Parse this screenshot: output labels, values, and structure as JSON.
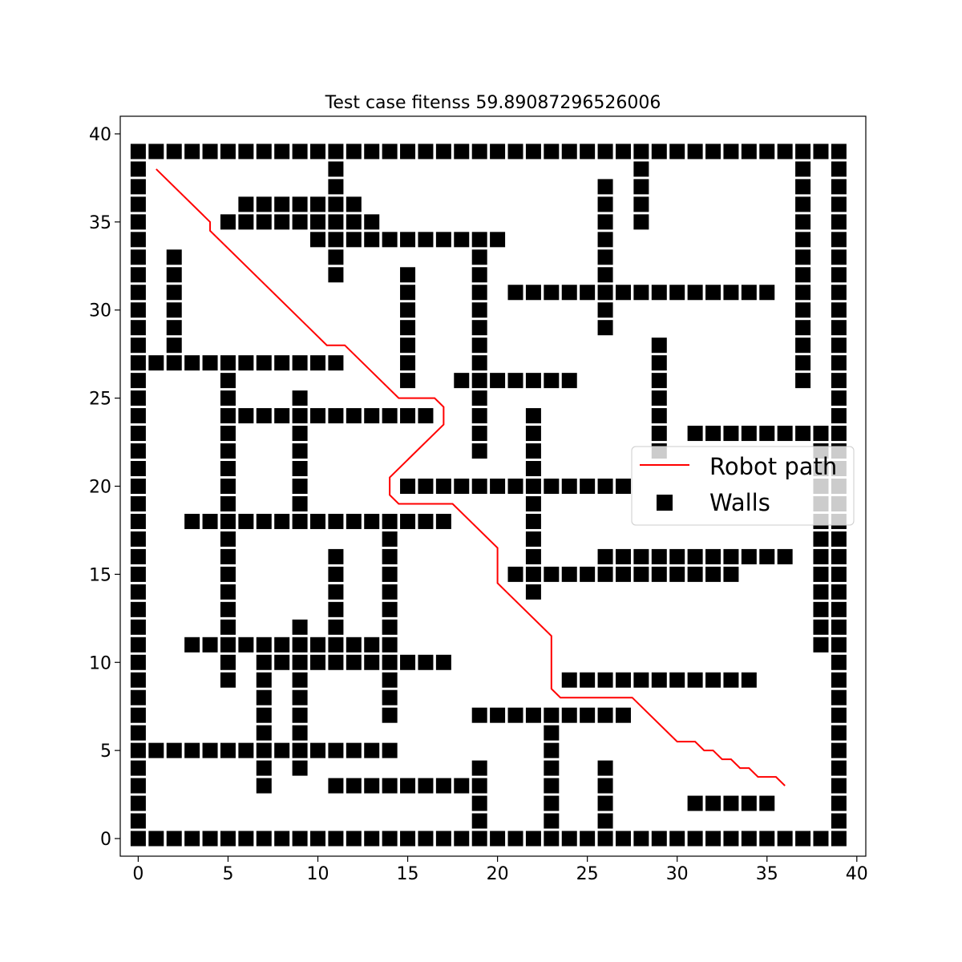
{
  "chart_data": {
    "type": "scatter",
    "title": "Test case fitenss 59.89087296526006",
    "xlabel": "",
    "ylabel": "",
    "xlim": [
      -1,
      40.5
    ],
    "ylim": [
      -1,
      41
    ],
    "xticks": [
      0,
      5,
      10,
      15,
      20,
      25,
      30,
      35,
      40
    ],
    "yticks": [
      0,
      5,
      10,
      15,
      20,
      25,
      30,
      35,
      40
    ],
    "grid": false,
    "legend": {
      "placement": "center-right",
      "entries": [
        {
          "label": "Robot path",
          "kind": "line",
          "color": "#ff0000"
        },
        {
          "label": "Walls",
          "kind": "marker",
          "color": "#000000"
        }
      ]
    },
    "path": {
      "name": "Robot path",
      "color": "#ff0000",
      "points": [
        [
          1,
          38
        ],
        [
          4,
          35
        ],
        [
          4,
          34.5
        ],
        [
          10.5,
          28
        ],
        [
          11.5,
          28
        ],
        [
          14.5,
          25
        ],
        [
          16.5,
          25
        ],
        [
          17,
          24.5
        ],
        [
          17,
          23.5
        ],
        [
          14,
          20.5
        ],
        [
          14,
          19.5
        ],
        [
          14.5,
          19
        ],
        [
          17.5,
          19
        ],
        [
          20,
          16.5
        ],
        [
          20,
          14.5
        ],
        [
          23,
          11.5
        ],
        [
          23,
          8.5
        ],
        [
          23.5,
          8
        ],
        [
          27.5,
          8
        ],
        [
          30,
          5.5
        ],
        [
          31,
          5.5
        ],
        [
          31.5,
          5
        ],
        [
          32,
          5
        ],
        [
          32.5,
          4.5
        ],
        [
          33,
          4.5
        ],
        [
          33.5,
          4
        ],
        [
          34,
          4
        ],
        [
          34.5,
          3.5
        ],
        [
          35.5,
          3.5
        ],
        [
          36,
          3
        ]
      ]
    },
    "walls": {
      "name": "Walls",
      "color": "#000000",
      "marker": "square",
      "segments": [
        {
          "orient": "h",
          "y": 39,
          "from": 0,
          "to": 39
        },
        {
          "orient": "h",
          "y": 0,
          "from": 0,
          "to": 39
        },
        {
          "orient": "v",
          "x": 0,
          "from": 0,
          "to": 39
        },
        {
          "orient": "v",
          "x": 39,
          "from": 0,
          "to": 39
        },
        {
          "orient": "v",
          "x": 38,
          "from": 11,
          "to": 23
        },
        {
          "orient": "v",
          "x": 37,
          "from": 26,
          "to": 38
        },
        {
          "orient": "v",
          "x": 11,
          "from": 32,
          "to": 38
        },
        {
          "orient": "h",
          "y": 36,
          "from": 6,
          "to": 12
        },
        {
          "orient": "h",
          "y": 35,
          "from": 5,
          "to": 13
        },
        {
          "orient": "h",
          "y": 34,
          "from": 10,
          "to": 20
        },
        {
          "orient": "v",
          "x": 26,
          "from": 29,
          "to": 37
        },
        {
          "orient": "v",
          "x": 28,
          "from": 35,
          "to": 38
        },
        {
          "orient": "v",
          "x": 2,
          "from": 27,
          "to": 33
        },
        {
          "orient": "h",
          "y": 27,
          "from": 0,
          "to": 11
        },
        {
          "orient": "v",
          "x": 15,
          "from": 26,
          "to": 32
        },
        {
          "orient": "v",
          "x": 19,
          "from": 22,
          "to": 33
        },
        {
          "orient": "h",
          "y": 31,
          "from": 21,
          "to": 35
        },
        {
          "orient": "h",
          "y": 26,
          "from": 18,
          "to": 24
        },
        {
          "orient": "v",
          "x": 29,
          "from": 22,
          "to": 28
        },
        {
          "orient": "h",
          "y": 23,
          "from": 31,
          "to": 39
        },
        {
          "orient": "v",
          "x": 5,
          "from": 9,
          "to": 26
        },
        {
          "orient": "v",
          "x": 9,
          "from": 19,
          "to": 25
        },
        {
          "orient": "h",
          "y": 24,
          "from": 5,
          "to": 16
        },
        {
          "orient": "v",
          "x": 22,
          "from": 14,
          "to": 24
        },
        {
          "orient": "h",
          "y": 20,
          "from": 15,
          "to": 27
        },
        {
          "orient": "h",
          "y": 18,
          "from": 3,
          "to": 17
        },
        {
          "orient": "v",
          "x": 14,
          "from": 7,
          "to": 17
        },
        {
          "orient": "v",
          "x": 11,
          "from": 11,
          "to": 16
        },
        {
          "orient": "h",
          "y": 16,
          "from": 26,
          "to": 36
        },
        {
          "orient": "h",
          "y": 15,
          "from": 21,
          "to": 33
        },
        {
          "orient": "h",
          "y": 11,
          "from": 3,
          "to": 14
        },
        {
          "orient": "v",
          "x": 9,
          "from": 4,
          "to": 12
        },
        {
          "orient": "h",
          "y": 10,
          "from": 7,
          "to": 17
        },
        {
          "orient": "v",
          "x": 7,
          "from": 3,
          "to": 10
        },
        {
          "orient": "h",
          "y": 9,
          "from": 24,
          "to": 34
        },
        {
          "orient": "h",
          "y": 7,
          "from": 19,
          "to": 27
        },
        {
          "orient": "v",
          "x": 23,
          "from": 1,
          "to": 7
        },
        {
          "orient": "h",
          "y": 5,
          "from": 0,
          "to": 14
        },
        {
          "orient": "h",
          "y": 3,
          "from": 11,
          "to": 18
        },
        {
          "orient": "v",
          "x": 19,
          "from": 1,
          "to": 4
        },
        {
          "orient": "v",
          "x": 26,
          "from": 1,
          "to": 4
        },
        {
          "orient": "h",
          "y": 2,
          "from": 31,
          "to": 35
        }
      ]
    }
  }
}
